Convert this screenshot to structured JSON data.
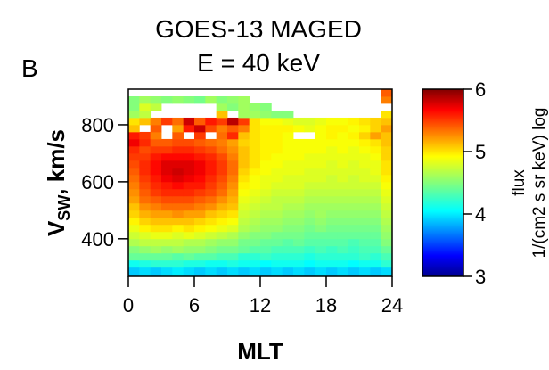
{
  "panel_label": "B",
  "title": "GOES-13  MAGED",
  "subtitle": "E = 40 keV",
  "chart_data": {
    "type": "heatmap",
    "xlabel": "MLT",
    "ylabel_main": "V",
    "ylabel_sub": "SW",
    "ylabel_rest": ", km/s",
    "xlim": [
      0,
      24
    ],
    "ylim": [
      268,
      925
    ],
    "x_ticks": [
      0,
      6,
      12,
      18,
      24
    ],
    "y_ticks": [
      400,
      600,
      800
    ],
    "x_bin_width": 1,
    "y_bins": [
      280,
      300,
      325,
      350,
      375,
      400,
      425,
      450,
      475,
      500,
      525,
      550,
      575,
      600,
      625,
      650,
      675,
      700,
      725,
      750,
      775,
      800,
      825,
      850,
      875,
      900
    ],
    "y_bin_height": 25,
    "colorbar": {
      "label": "flux",
      "units": "1/(cm2 s sr keV) log",
      "range": [
        3,
        6
      ],
      "ticks": [
        3,
        4,
        5,
        6
      ],
      "colormap": [
        "#00008f",
        "#0000ff",
        "#00ffff",
        "#ffff00",
        "#ff0000",
        "#800000"
      ]
    },
    "values": [
      [
        3.9,
        3.95,
        3.9,
        3.95,
        4.0,
        3.95,
        3.9,
        3.95,
        3.9,
        3.95,
        3.9,
        3.95,
        3.9,
        3.95,
        3.9,
        3.95,
        3.9,
        3.95,
        3.9,
        3.95,
        3.9,
        3.95,
        3.9,
        3.95
      ],
      [
        4.1,
        4.15,
        4.2,
        4.2,
        4.2,
        4.15,
        4.15,
        4.1,
        4.1,
        4.15,
        4.1,
        4.1,
        4.05,
        4.1,
        4.1,
        4.1,
        4.05,
        4.1,
        4.1,
        4.1,
        4.05,
        4.1,
        4.1,
        4.2
      ],
      [
        4.4,
        4.4,
        4.4,
        4.4,
        4.35,
        4.4,
        4.35,
        4.35,
        4.3,
        4.3,
        4.2,
        4.2,
        4.25,
        4.2,
        4.2,
        4.2,
        4.15,
        4.2,
        4.2,
        4.2,
        4.2,
        4.25,
        4.2,
        4.3
      ],
      [
        4.5,
        4.55,
        4.6,
        4.55,
        4.6,
        4.55,
        4.55,
        4.5,
        4.45,
        4.45,
        4.4,
        4.35,
        4.35,
        4.3,
        4.3,
        4.3,
        4.25,
        4.3,
        4.25,
        4.3,
        4.25,
        4.3,
        4.3,
        4.4
      ],
      [
        4.65,
        4.7,
        4.7,
        4.7,
        4.7,
        4.65,
        4.65,
        4.6,
        4.55,
        4.55,
        4.45,
        4.45,
        4.4,
        4.4,
        4.35,
        4.4,
        4.35,
        4.35,
        4.35,
        4.35,
        4.3,
        4.35,
        4.35,
        4.5
      ],
      [
        4.75,
        4.8,
        4.85,
        4.85,
        4.8,
        4.85,
        4.8,
        4.75,
        4.7,
        4.65,
        4.55,
        4.5,
        4.5,
        4.45,
        4.45,
        4.45,
        4.4,
        4.4,
        4.4,
        4.4,
        4.4,
        4.4,
        4.4,
        4.55
      ],
      [
        4.85,
        4.95,
        5.0,
        5.0,
        4.95,
        5.0,
        4.95,
        4.9,
        4.85,
        4.8,
        4.65,
        4.6,
        4.55,
        4.55,
        4.5,
        4.5,
        4.45,
        4.5,
        4.45,
        4.45,
        4.45,
        4.45,
        4.45,
        4.6
      ],
      [
        4.95,
        5.05,
        5.1,
        5.1,
        5.1,
        5.1,
        5.05,
        5.0,
        4.95,
        4.9,
        4.7,
        4.65,
        4.6,
        4.6,
        4.55,
        4.55,
        4.5,
        4.55,
        4.5,
        4.5,
        4.5,
        4.5,
        4.5,
        4.65
      ],
      [
        5.05,
        5.15,
        5.2,
        5.2,
        5.25,
        5.2,
        5.2,
        5.1,
        5.05,
        5.0,
        4.75,
        4.7,
        4.65,
        4.65,
        4.6,
        4.6,
        4.55,
        4.6,
        4.55,
        4.55,
        4.55,
        4.55,
        4.55,
        4.7
      ],
      [
        5.1,
        5.25,
        5.3,
        5.35,
        5.35,
        5.35,
        5.3,
        5.25,
        5.15,
        5.1,
        4.8,
        4.75,
        4.7,
        4.7,
        4.65,
        4.65,
        4.6,
        4.6,
        4.6,
        4.6,
        4.6,
        4.6,
        4.6,
        4.75
      ],
      [
        5.2,
        5.35,
        5.4,
        5.45,
        5.45,
        5.45,
        5.4,
        5.35,
        5.25,
        5.15,
        4.85,
        4.8,
        4.75,
        4.7,
        4.7,
        4.7,
        4.65,
        4.65,
        4.65,
        4.65,
        4.65,
        4.65,
        4.65,
        4.8
      ],
      [
        5.25,
        5.4,
        5.5,
        5.55,
        5.55,
        5.55,
        5.5,
        5.45,
        5.35,
        5.2,
        4.9,
        4.85,
        4.8,
        4.75,
        4.75,
        4.75,
        4.7,
        4.7,
        4.7,
        4.7,
        4.7,
        4.7,
        4.7,
        4.85
      ],
      [
        5.3,
        5.45,
        5.55,
        5.6,
        5.65,
        5.6,
        5.6,
        5.5,
        5.4,
        5.25,
        4.95,
        4.9,
        4.85,
        4.8,
        4.8,
        4.8,
        4.75,
        4.75,
        4.75,
        4.75,
        4.75,
        4.75,
        4.75,
        4.9
      ],
      [
        5.35,
        5.5,
        5.6,
        5.7,
        5.75,
        5.7,
        5.65,
        5.55,
        5.45,
        5.3,
        5.0,
        4.9,
        4.85,
        4.85,
        4.8,
        4.8,
        4.8,
        4.8,
        4.75,
        4.8,
        4.75,
        4.8,
        4.8,
        4.95
      ],
      [
        5.4,
        5.55,
        5.65,
        5.75,
        5.8,
        5.75,
        5.7,
        5.6,
        5.5,
        5.35,
        5.05,
        4.95,
        4.9,
        4.85,
        4.85,
        4.85,
        4.8,
        4.8,
        4.8,
        4.8,
        4.8,
        4.8,
        4.85,
        5.0
      ],
      [
        5.45,
        5.55,
        5.65,
        5.75,
        5.75,
        5.75,
        5.7,
        5.6,
        5.5,
        5.35,
        5.1,
        5.0,
        4.9,
        4.9,
        4.85,
        4.85,
        4.85,
        4.85,
        4.8,
        4.85,
        4.8,
        4.85,
        4.85,
        5.0
      ],
      [
        5.5,
        5.5,
        5.6,
        5.65,
        5.65,
        5.65,
        5.6,
        5.55,
        5.45,
        5.3,
        5.1,
        5.0,
        4.95,
        4.9,
        4.9,
        4.9,
        4.85,
        4.85,
        4.85,
        4.85,
        4.85,
        4.85,
        4.9,
        5.05
      ],
      [
        5.55,
        5.45,
        5.5,
        5.5,
        5.55,
        5.55,
        5.5,
        5.45,
        5.35,
        5.25,
        5.1,
        5.0,
        4.95,
        4.95,
        4.9,
        4.9,
        4.9,
        4.9,
        4.85,
        4.9,
        4.85,
        4.9,
        4.95,
        5.05
      ],
      [
        5.7,
        5.55,
        5.4,
        5.4,
        5.45,
        5.45,
        5.4,
        5.35,
        5.3,
        5.2,
        5.05,
        5.0,
        4.95,
        4.95,
        4.9,
        4.9,
        4.9,
        4.9,
        4.9,
        4.9,
        4.9,
        4.95,
        5.0,
        5.1
      ],
      [
        5.6,
        5.5,
        5.3,
        null,
        5.4,
        null,
        5.5,
        null,
        5.35,
        5.55,
        5.1,
        5.0,
        4.95,
        4.95,
        4.9,
        null,
        null,
        4.9,
        4.95,
        4.9,
        4.95,
        5.05,
        5.2,
        5.1
      ],
      [
        5.1,
        null,
        5.4,
        null,
        5.2,
        5.6,
        5.8,
        5.45,
        5.3,
        5.4,
        5.3,
        5.0,
        4.95,
        4.95,
        4.95,
        4.9,
        4.85,
        4.9,
        4.95,
        4.95,
        4.9,
        4.95,
        5.05,
        5.2
      ],
      [
        5.0,
        5.1,
        5.3,
        5.5,
        5.35,
        5.8,
        5.4,
        5.6,
        5.5,
        5.85,
        5.5,
        5.0,
        4.9,
        4.9,
        4.85,
        4.8,
        4.8,
        4.85,
        4.9,
        4.9,
        4.95,
        5.0,
        5.05,
        5.1
      ],
      [
        4.6,
        4.7,
        null,
        null,
        null,
        null,
        null,
        null,
        5.1,
        null,
        4.6,
        4.6,
        4.55,
        4.5,
        4.5,
        null,
        null,
        null,
        null,
        null,
        null,
        null,
        null,
        5.0
      ],
      [
        4.5,
        4.8,
        4.7,
        null,
        null,
        null,
        null,
        null,
        4.6,
        4.5,
        4.6,
        4.55,
        4.5,
        null,
        null,
        null,
        null,
        null,
        null,
        null,
        null,
        null,
        null,
        null
      ],
      [
        4.5,
        4.6,
        4.55,
        4.5,
        4.55,
        4.5,
        4.45,
        4.6,
        4.5,
        4.55,
        4.6,
        null,
        null,
        null,
        null,
        null,
        null,
        null,
        null,
        null,
        null,
        null,
        null,
        5.3
      ],
      [
        null,
        null,
        null,
        null,
        null,
        null,
        null,
        null,
        null,
        null,
        null,
        null,
        null,
        null,
        null,
        null,
        null,
        null,
        null,
        null,
        null,
        null,
        null,
        5.4
      ]
    ]
  }
}
